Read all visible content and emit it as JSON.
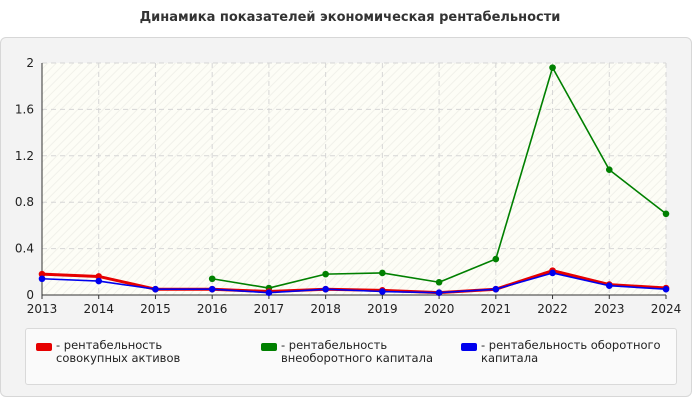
{
  "chart_data": {
    "type": "line",
    "title": "Динамика показателей экономическая рентабельности",
    "x": [
      2013,
      2014,
      2015,
      2016,
      2017,
      2018,
      2019,
      2020,
      2021,
      2022,
      2023,
      2024
    ],
    "ylim": [
      0,
      2
    ],
    "yticks": [
      0,
      0.4,
      0.8,
      1.2,
      1.6,
      2
    ],
    "ytick_labels": [
      "0",
      "0.4",
      "0.8",
      "1.2",
      "1.6",
      "2"
    ],
    "grid": true,
    "legend_position": "bottom",
    "series": [
      {
        "name": "- рентабельность совокупных активов",
        "color": "#e60000",
        "values": [
          0.18,
          0.16,
          0.05,
          0.05,
          0.03,
          0.05,
          0.04,
          0.02,
          0.05,
          0.21,
          0.09,
          0.06
        ]
      },
      {
        "name": "- рентабельность внеоборотного капитала",
        "color": "#008000",
        "values": [
          null,
          null,
          null,
          0.14,
          0.06,
          0.18,
          0.19,
          0.11,
          0.31,
          1.96,
          1.08,
          0.7
        ]
      },
      {
        "name": "- рентабельность оборотного капитала",
        "color": "#0000ee",
        "values": [
          0.14,
          0.12,
          0.05,
          0.05,
          0.02,
          0.05,
          0.03,
          0.02,
          0.05,
          0.19,
          0.08,
          0.05
        ]
      }
    ]
  }
}
